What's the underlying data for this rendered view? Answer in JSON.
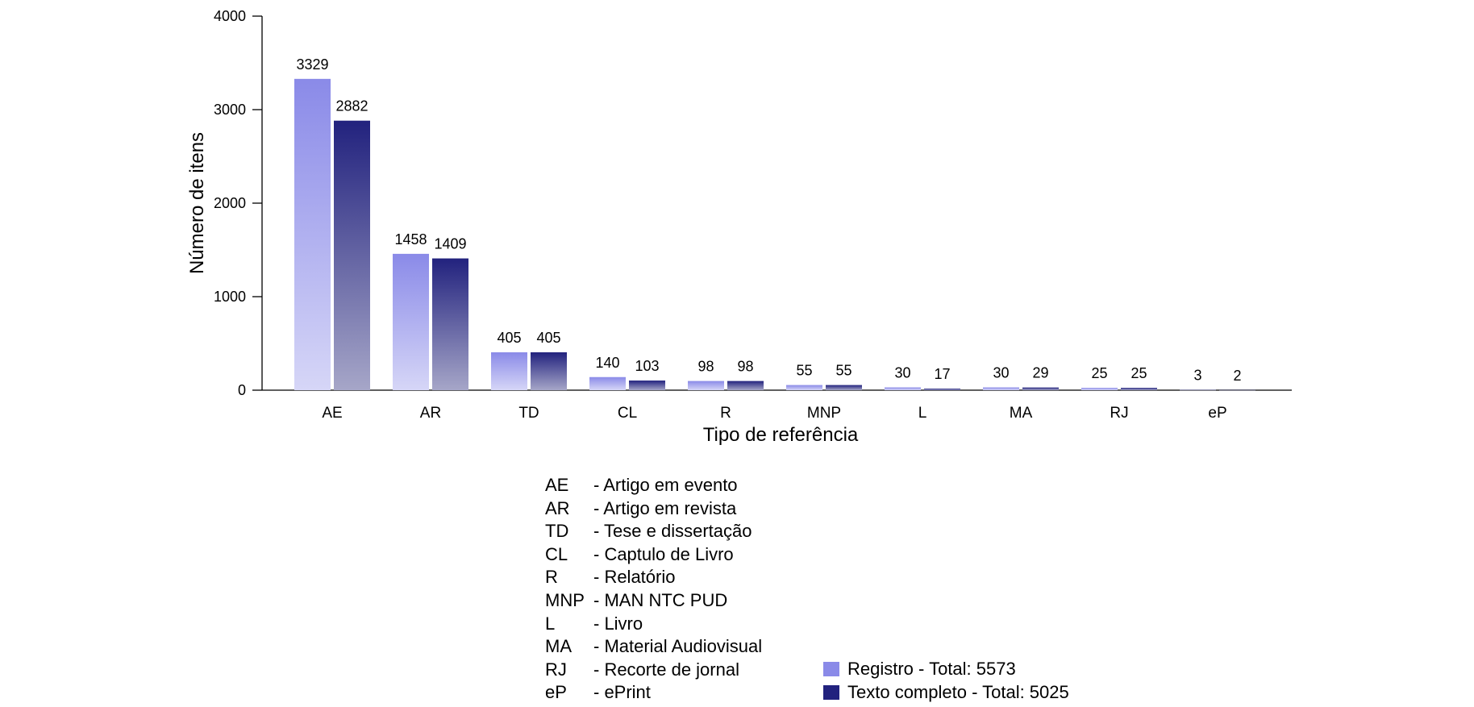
{
  "chart_data": {
    "type": "bar",
    "xlabel": "Tipo de referência",
    "ylabel": "Número de itens",
    "ylim": [
      0,
      4000
    ],
    "yticks": [
      0,
      1000,
      2000,
      3000,
      4000
    ],
    "categories": [
      "AE",
      "AR",
      "TD",
      "CL",
      "R",
      "MNP",
      "L",
      "MA",
      "RJ",
      "eP"
    ],
    "series": [
      {
        "name": "Registro - Total: 5573",
        "color": "#8a8ae8",
        "values": [
          3329,
          1458,
          405,
          140,
          98,
          55,
          30,
          30,
          25,
          3
        ]
      },
      {
        "name": "Texto completo - Total: 5025",
        "color": "#22227e",
        "values": [
          2882,
          1409,
          405,
          103,
          98,
          55,
          17,
          29,
          25,
          2
        ]
      }
    ],
    "grid": false,
    "legend_position": "bottom-right"
  },
  "abbreviations": [
    {
      "code": "AE",
      "desc": "- Artigo em evento"
    },
    {
      "code": "AR",
      "desc": "- Artigo em revista"
    },
    {
      "code": "TD",
      "desc": "- Tese e dissertação"
    },
    {
      "code": "CL",
      "desc": "- Captulo de Livro"
    },
    {
      "code": "R",
      "desc": "- Relatório"
    },
    {
      "code": "MNP",
      "desc": "- MAN NTC PUD"
    },
    {
      "code": "L",
      "desc": "- Livro"
    },
    {
      "code": "MA",
      "desc": "- Material Audiovisual"
    },
    {
      "code": "RJ",
      "desc": "- Recorte de jornal"
    },
    {
      "code": "eP",
      "desc": "- ePrint"
    }
  ]
}
